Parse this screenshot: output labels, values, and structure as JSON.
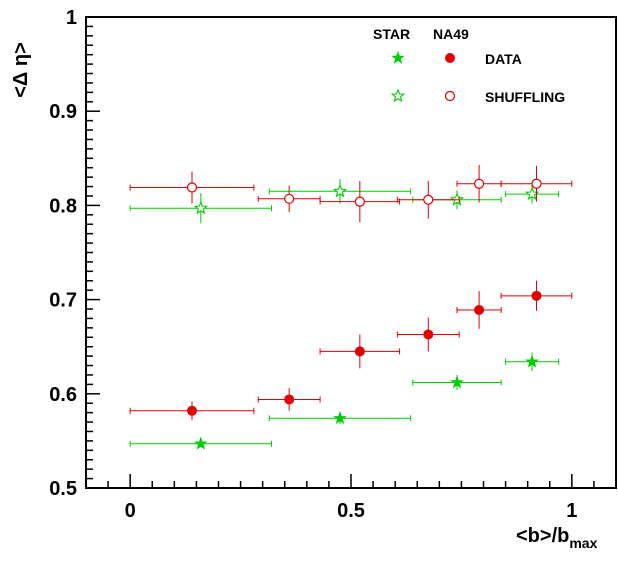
{
  "chart_data": {
    "type": "scatter",
    "xlabel": "<b>/b",
    "xlabel_sub": "max",
    "ylabel": "<Δ η>",
    "xlim": [
      -0.1,
      1.1
    ],
    "ylim": [
      0.5,
      1.0
    ],
    "x_ticks": [
      0,
      0.5,
      1
    ],
    "x_tick_labels": [
      "0",
      "0.5",
      "1"
    ],
    "y_ticks": [
      0.5,
      0.6,
      0.7,
      0.8,
      0.9,
      1.0
    ],
    "y_tick_labels": [
      "0.5",
      "0.6",
      "0.7",
      "0.8",
      "0.9",
      "1"
    ],
    "legend": {
      "position": "top-right",
      "column_headers": [
        "STAR",
        "NA49"
      ],
      "row_labels": [
        "DATA",
        "SHUFFLING"
      ]
    },
    "colors": {
      "star": "#00cc00",
      "na49": "#e00000"
    },
    "series": [
      {
        "experiment": "STAR",
        "kind": "DATA",
        "marker": "filled-star",
        "color": "#00cc00",
        "points": [
          {
            "x": 0.16,
            "y": 0.547,
            "xerr": 0.16,
            "yerr": 0.004
          },
          {
            "x": 0.475,
            "y": 0.574,
            "xerr": 0.16,
            "yerr": 0.006
          },
          {
            "x": 0.74,
            "y": 0.612,
            "xerr": 0.1,
            "yerr": 0.008
          },
          {
            "x": 0.91,
            "y": 0.634,
            "xerr": 0.06,
            "yerr": 0.01
          }
        ]
      },
      {
        "experiment": "NA49",
        "kind": "DATA",
        "marker": "filled-circle",
        "color": "#e00000",
        "points": [
          {
            "x": 0.14,
            "y": 0.582,
            "xerr": 0.14,
            "yerr": 0.01
          },
          {
            "x": 0.36,
            "y": 0.594,
            "xerr": 0.07,
            "yerr": 0.012
          },
          {
            "x": 0.52,
            "y": 0.645,
            "xerr": 0.09,
            "yerr": 0.018
          },
          {
            "x": 0.675,
            "y": 0.663,
            "xerr": 0.07,
            "yerr": 0.018
          },
          {
            "x": 0.79,
            "y": 0.689,
            "xerr": 0.05,
            "yerr": 0.02
          },
          {
            "x": 0.92,
            "y": 0.704,
            "xerr": 0.08,
            "yerr": 0.016
          }
        ]
      },
      {
        "experiment": "STAR",
        "kind": "SHUFFLING",
        "marker": "open-star",
        "color": "#00cc00",
        "points": [
          {
            "x": 0.16,
            "y": 0.797,
            "xerr": 0.16,
            "yerr": 0.016
          },
          {
            "x": 0.475,
            "y": 0.815,
            "xerr": 0.16,
            "yerr": 0.013
          },
          {
            "x": 0.74,
            "y": 0.806,
            "xerr": 0.1,
            "yerr": 0.01
          },
          {
            "x": 0.91,
            "y": 0.812,
            "xerr": 0.06,
            "yerr": 0.01
          }
        ]
      },
      {
        "experiment": "NA49",
        "kind": "SHUFFLING",
        "marker": "open-circle",
        "color": "#e00000",
        "points": [
          {
            "x": 0.14,
            "y": 0.819,
            "xerr": 0.14,
            "yerr": 0.017
          },
          {
            "x": 0.36,
            "y": 0.807,
            "xerr": 0.07,
            "yerr": 0.014
          },
          {
            "x": 0.52,
            "y": 0.804,
            "xerr": 0.09,
            "yerr": 0.022
          },
          {
            "x": 0.675,
            "y": 0.806,
            "xerr": 0.07,
            "yerr": 0.02
          },
          {
            "x": 0.79,
            "y": 0.823,
            "xerr": 0.05,
            "yerr": 0.02
          },
          {
            "x": 0.92,
            "y": 0.823,
            "xerr": 0.08,
            "yerr": 0.019
          }
        ]
      }
    ]
  }
}
